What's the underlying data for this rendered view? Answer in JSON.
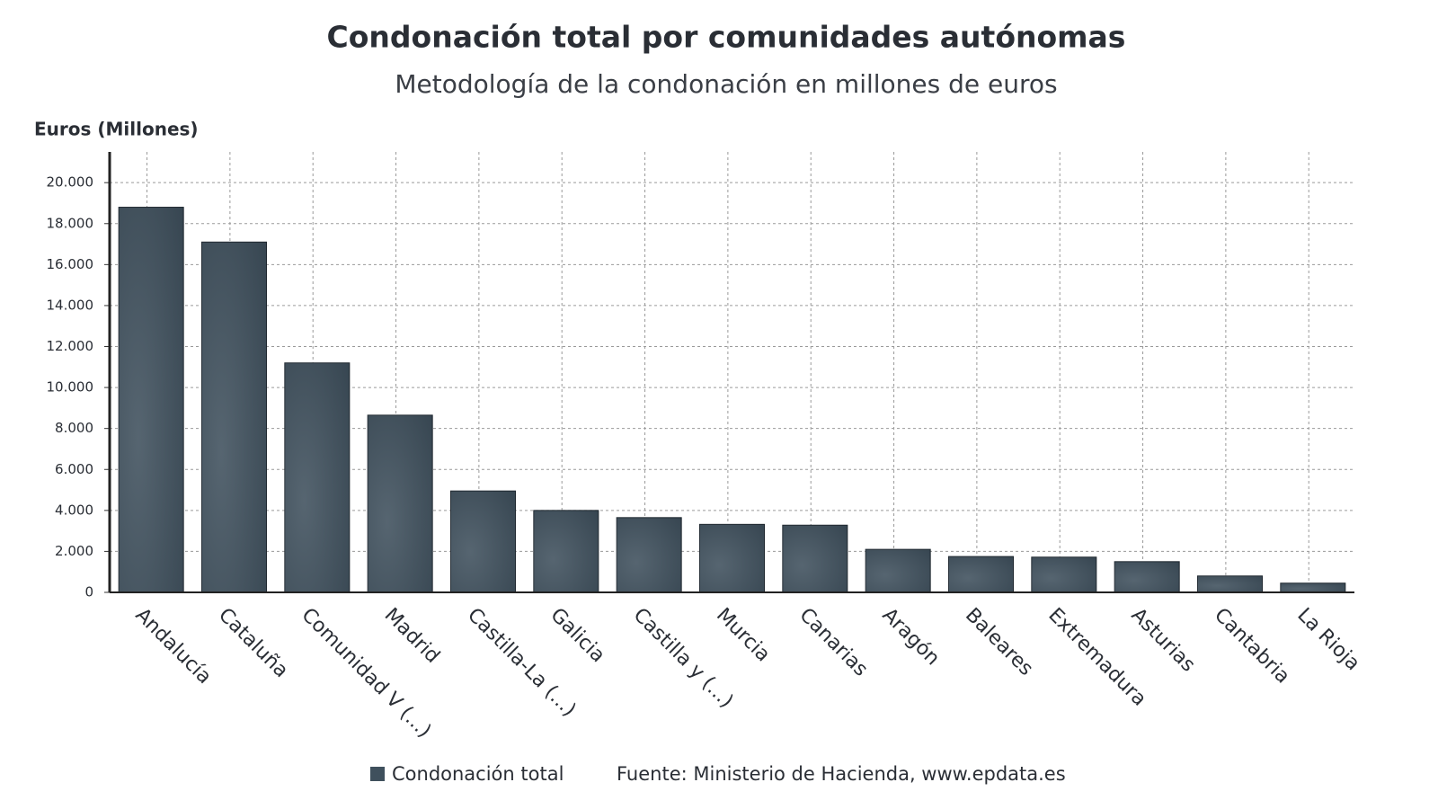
{
  "chart_data": {
    "type": "bar",
    "title": "Condonación total por comunidades autónomas",
    "subtitle": "Metodología de la condonación en millones de euros",
    "y_label": "Euros (Millones)",
    "categories": [
      "Andalucía",
      "Cataluña",
      "Comunidad V (...)",
      "Madrid",
      "Castilla-La (...)",
      "Galicia",
      "Castilla y (...)",
      "Murcia",
      "Canarias",
      "Aragón",
      "Baleares",
      "Extremadura",
      "Asturias",
      "Cantabria",
      "La Rioja"
    ],
    "series": [
      {
        "name": "Condonación total",
        "color": "#3f505d",
        "values": [
          18800,
          17100,
          11200,
          8650,
          4950,
          4000,
          3650,
          3320,
          3280,
          2100,
          1750,
          1720,
          1500,
          800,
          450
        ]
      }
    ],
    "ylim": [
      0,
      21500
    ],
    "yticks": [
      0,
      {
        "value": 2000,
        "label": "2.000"
      },
      {
        "value": 4000,
        "label": "4.000"
      },
      {
        "value": 6000,
        "label": "6.000"
      },
      {
        "value": 8000,
        "label": "8.000"
      },
      {
        "value": 10000,
        "label": "10.000"
      },
      {
        "value": 12000,
        "label": "12.000"
      },
      {
        "value": 14000,
        "label": "14.000"
      },
      {
        "value": 16000,
        "label": "16.000"
      },
      {
        "value": 18000,
        "label": "18.000"
      },
      {
        "value": 20000,
        "label": "20.000"
      }
    ],
    "grid": true,
    "source": "Fuente: Ministerio de Hacienda, www.epdata.es"
  }
}
